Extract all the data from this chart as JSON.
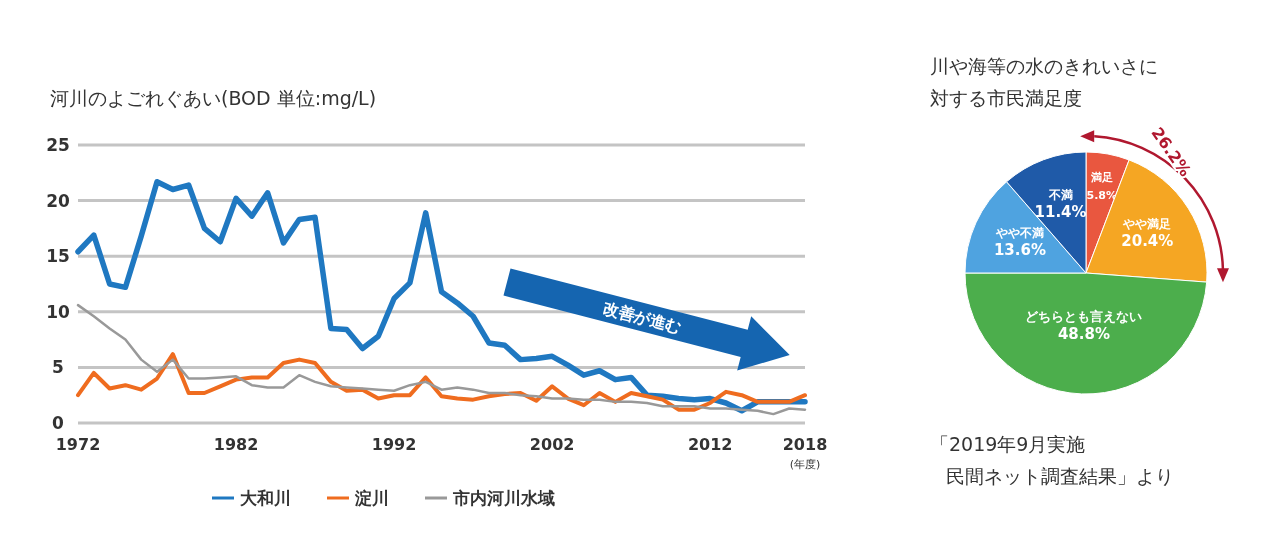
{
  "chart_data": [
    {
      "type": "line",
      "title": "河川のよごれぐあい(BOD 単位:mg/L)",
      "xlabel": "(年度)",
      "x": [
        1972,
        1973,
        1974,
        1975,
        1976,
        1977,
        1978,
        1979,
        1980,
        1981,
        1982,
        1983,
        1984,
        1985,
        1986,
        1987,
        1988,
        1989,
        1990,
        1991,
        1992,
        1993,
        1994,
        1995,
        1996,
        1997,
        1998,
        1999,
        2000,
        2001,
        2002,
        2003,
        2004,
        2005,
        2006,
        2007,
        2008,
        2009,
        2010,
        2011,
        2012,
        2013,
        2014,
        2015,
        2016,
        2017,
        2018
      ],
      "series": [
        {
          "name": "大和川",
          "color": "#1f78c1",
          "values": [
            15.4,
            16.9,
            12.5,
            12.2,
            16.8,
            21.7,
            21.0,
            21.4,
            17.5,
            16.3,
            20.2,
            18.6,
            20.7,
            16.2,
            18.3,
            18.5,
            8.5,
            8.4,
            6.7,
            7.8,
            11.2,
            12.6,
            18.9,
            11.8,
            10.8,
            9.6,
            7.2,
            7.0,
            5.7,
            5.8,
            6.0,
            5.2,
            4.3,
            4.7,
            3.9,
            4.1,
            2.5,
            2.4,
            2.2,
            2.1,
            2.2,
            1.8,
            1.1,
            1.9,
            1.9,
            1.9,
            1.9
          ]
        },
        {
          "name": "淀川",
          "color": "#ef6c1f",
          "values": [
            2.5,
            4.5,
            3.1,
            3.4,
            3.0,
            4.0,
            6.2,
            2.7,
            2.7,
            3.3,
            3.9,
            4.1,
            4.1,
            5.4,
            5.7,
            5.4,
            3.7,
            2.9,
            3.0,
            2.2,
            2.5,
            2.5,
            4.1,
            2.4,
            2.2,
            2.1,
            2.4,
            2.6,
            2.7,
            2.0,
            3.3,
            2.2,
            1.6,
            2.7,
            1.9,
            2.7,
            2.4,
            2.1,
            1.2,
            1.2,
            1.8,
            2.8,
            2.5,
            1.9,
            1.9,
            1.9,
            2.5
          ]
        },
        {
          "name": "市内河川水域",
          "color": "#999999",
          "values": [
            10.6,
            9.6,
            8.5,
            7.5,
            5.7,
            4.6,
            5.7,
            4.0,
            4.0,
            4.1,
            4.2,
            3.4,
            3.2,
            3.2,
            4.3,
            3.7,
            3.3,
            3.2,
            3.1,
            3.0,
            2.9,
            3.4,
            3.7,
            3.0,
            3.2,
            3.0,
            2.7,
            2.7,
            2.5,
            2.4,
            2.2,
            2.2,
            2.1,
            2.1,
            1.9,
            1.9,
            1.8,
            1.5,
            1.5,
            1.5,
            1.3,
            1.3,
            1.2,
            1.1,
            0.8,
            1.3,
            1.2
          ]
        }
      ],
      "xlim": [
        1972,
        2018
      ],
      "xticks": [
        1972,
        1982,
        1992,
        2002,
        2012,
        2018
      ],
      "ylim": [
        0,
        25
      ],
      "yticks": [
        0,
        5,
        10,
        15,
        20,
        25
      ],
      "grid": "y",
      "legend": "bottom",
      "line_style": "solid",
      "annotations": [
        "改善が進む"
      ]
    },
    {
      "type": "pie",
      "title": "川や海等の水のきれいさに対する市民満足度",
      "categories": [
        "満足",
        "やや満足",
        "どちらとも言えない",
        "やや不満",
        "不満"
      ],
      "values": [
        5.8,
        20.4,
        48.8,
        13.6,
        11.4
      ],
      "value_labels": [
        "5.8%",
        "20.4%",
        "48.8%",
        "13.6%",
        "11.4%"
      ],
      "colors": [
        "#e9573f",
        "#f5a623",
        "#4cae4c",
        "#4fa3e0",
        "#1f5aa8"
      ],
      "annotations": [
        "26.2%",
        "「2019年9月実施",
        "民間ネット調査結果」より"
      ]
    }
  ]
}
